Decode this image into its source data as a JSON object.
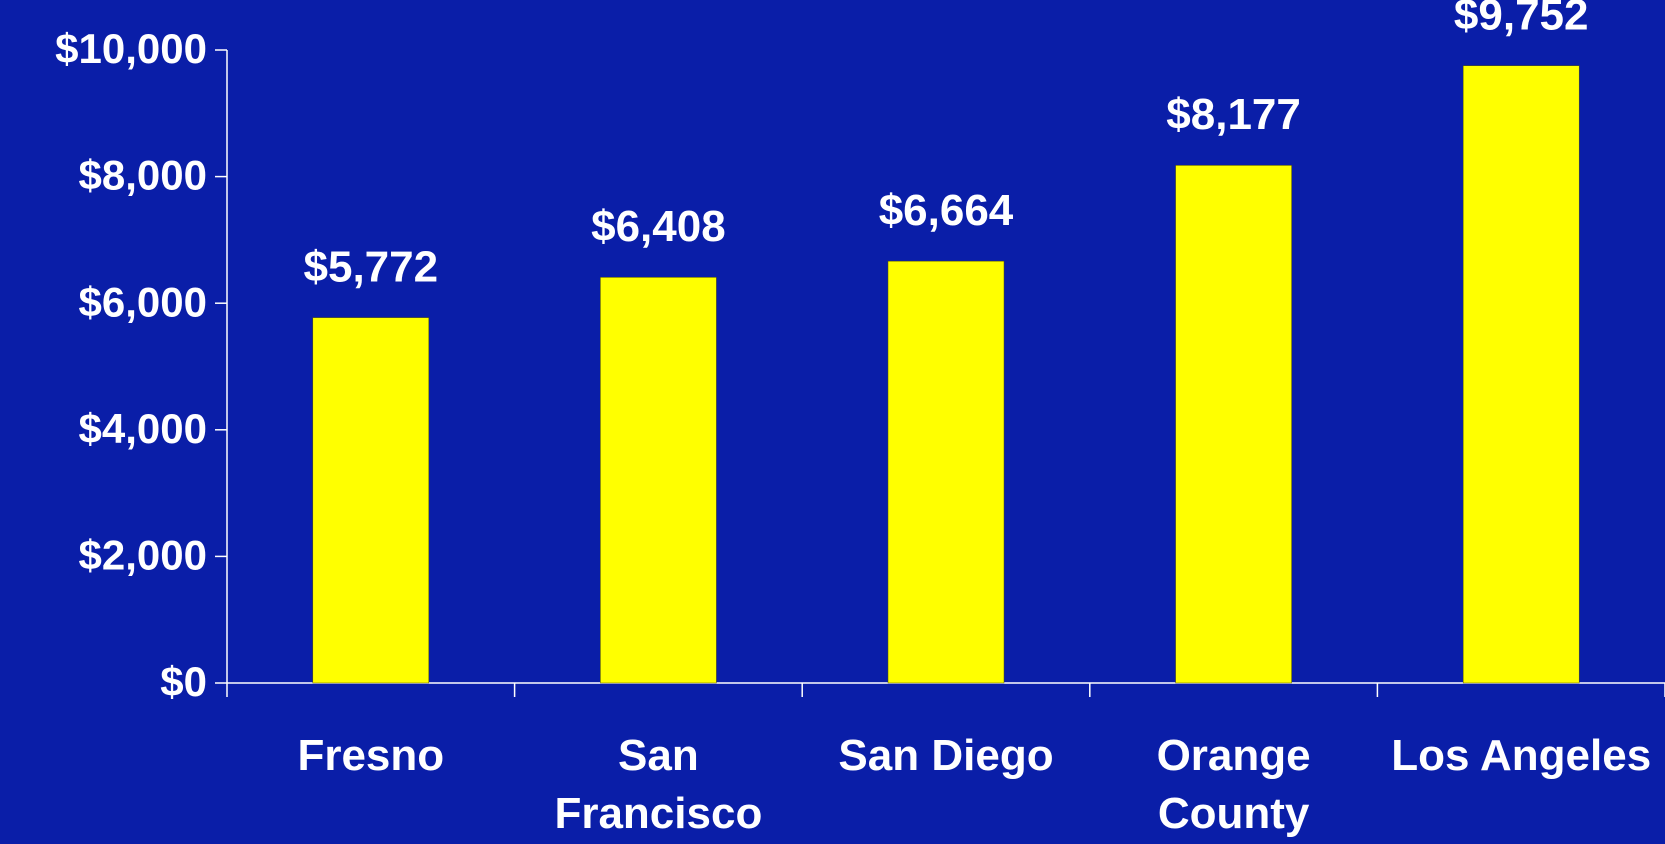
{
  "chart_data": {
    "type": "bar",
    "categories": [
      "Fresno",
      "San Francisco",
      "San Diego",
      "Orange County",
      "Los Angeles"
    ],
    "values": [
      5772,
      6408,
      6664,
      8177,
      9752
    ],
    "value_labels": [
      "$5,772",
      "$6,408",
      "$6,664",
      "$8,177",
      "$9,752"
    ],
    "color": "#ffff00",
    "ylim": [
      0,
      10000
    ],
    "yticks": [
      {
        "value": 0,
        "label": "$0"
      },
      {
        "value": 2000,
        "label": "$2,000"
      },
      {
        "value": 4000,
        "label": "$4,000"
      },
      {
        "value": 6000,
        "label": "$6,000"
      },
      {
        "value": 8000,
        "label": "$8,000"
      },
      {
        "value": 10000,
        "label": "$10,000"
      }
    ],
    "grid": false
  }
}
